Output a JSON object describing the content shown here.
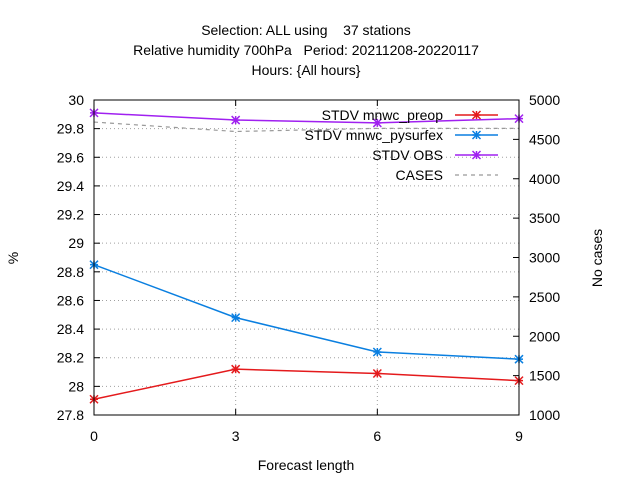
{
  "chart_data": {
    "type": "line",
    "title_lines": [
      "Selection: ALL using    37 stations",
      "Relative humidity 700hPa   Period: 20211208-20220117",
      "Hours: {All hours}"
    ],
    "xlabel": "Forecast length",
    "ylabel": "%",
    "y2label": "No cases",
    "x": [
      0,
      3,
      6,
      9
    ],
    "xticks": [
      "0",
      "3",
      "6",
      "9"
    ],
    "xlim": [
      0,
      9
    ],
    "ylim": [
      27.8,
      30
    ],
    "yticks": [
      "27.8",
      "28",
      "28.2",
      "28.4",
      "28.6",
      "28.8",
      "29",
      "29.2",
      "29.4",
      "29.6",
      "29.8",
      "30"
    ],
    "y2lim": [
      1000,
      5000
    ],
    "y2ticks": [
      "1000",
      "1500",
      "2000",
      "2500",
      "3000",
      "3500",
      "4000",
      "4500",
      "5000"
    ],
    "grid": true,
    "legend_position": "top-right",
    "series": [
      {
        "name": "STDV mnwc_preop",
        "axis": "left",
        "color": "#e41a1c",
        "values": [
          27.91,
          28.12,
          28.09,
          28.04
        ]
      },
      {
        "name": "STDV mnwc_pysurfex",
        "axis": "left",
        "color": "#0a7fe0",
        "values": [
          28.85,
          28.48,
          28.24,
          28.19
        ]
      },
      {
        "name": "STDV OBS",
        "axis": "left",
        "color": "#a020f0",
        "values": [
          29.91,
          29.86,
          29.84,
          29.87
        ]
      },
      {
        "name": "CASES",
        "axis": "right",
        "color": "#999999",
        "dashed": true,
        "values": [
          4720,
          4600,
          4640,
          4640
        ]
      }
    ]
  }
}
